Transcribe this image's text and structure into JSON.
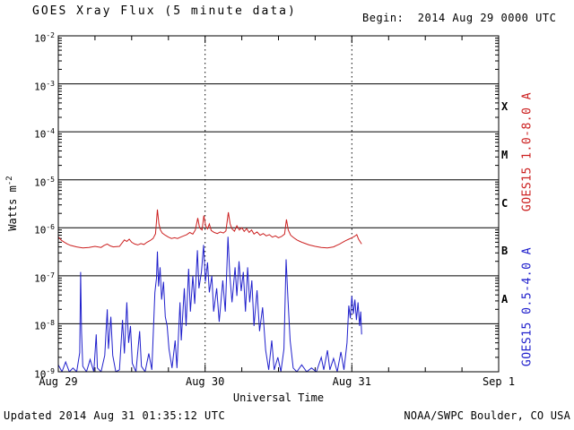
{
  "header": {
    "title": "GOES Xray Flux (5 minute data)",
    "begin_label": "Begin:  2014 Aug 29 0000 UTC"
  },
  "axes": {
    "y_label_base": "Watts m",
    "y_label_exponent": "-2",
    "x_label": "Universal Time"
  },
  "footer": {
    "updated": "Updated 2014 Aug 31 01:35:12 UTC",
    "source": "NOAA/SWPC Boulder, CO USA"
  },
  "chart_data": {
    "type": "line",
    "title": "GOES Xray Flux (5 minute data)",
    "xlabel": "Universal Time",
    "ylabel": "Watts m^-2",
    "x_unit_hours_since": "2014 Aug 29 0000 UTC",
    "x_range": [
      0,
      72
    ],
    "ylim": [
      1e-09,
      0.01
    ],
    "y_scale": "log",
    "grid": "solid horizontal lines each decade; dotted vertical lines at day boundaries",
    "legend_position": "right edge, rotated vertical",
    "y_tick_mantissa": "10",
    "y_tick_exponents": [
      -2,
      -3,
      -4,
      -5,
      -6,
      -7,
      -8,
      -9
    ],
    "x_ticks": [
      {
        "hour": 0,
        "label": "Aug 29"
      },
      {
        "hour": 24,
        "label": "Aug 30"
      },
      {
        "hour": 48,
        "label": "Aug 31"
      },
      {
        "hour": 72,
        "label": "Sep 1"
      }
    ],
    "day_gridlines_hours": [
      24,
      48
    ],
    "flare_class_bands": [
      {
        "label": "X",
        "decade_exponent": -4
      },
      {
        "label": "M",
        "decade_exponent": -5
      },
      {
        "label": "C",
        "decade_exponent": -6
      },
      {
        "label": "B",
        "decade_exponent": -7
      },
      {
        "label": "A",
        "decade_exponent": -8
      }
    ],
    "series": [
      {
        "name": "GOES15 1.0-8.0 A",
        "color": "#cc2020",
        "points": [
          [
            0,
            6.5e-07
          ],
          [
            0.5,
            5.5e-07
          ],
          [
            1.0,
            5e-07
          ],
          [
            1.5,
            4.6e-07
          ],
          [
            2.0,
            4.3e-07
          ],
          [
            3.0,
            4e-07
          ],
          [
            4.0,
            3.8e-07
          ],
          [
            5.0,
            3.9e-07
          ],
          [
            6.0,
            4.1e-07
          ],
          [
            7.0,
            3.9e-07
          ],
          [
            7.5,
            4.3e-07
          ],
          [
            8.0,
            4.6e-07
          ],
          [
            8.5,
            4.2e-07
          ],
          [
            9.0,
            4e-07
          ],
          [
            10.0,
            4.1e-07
          ],
          [
            10.8,
            5.6e-07
          ],
          [
            11.2,
            5.2e-07
          ],
          [
            11.6,
            5.8e-07
          ],
          [
            12.0,
            5e-07
          ],
          [
            12.5,
            4.6e-07
          ],
          [
            13.0,
            4.4e-07
          ],
          [
            13.5,
            4.7e-07
          ],
          [
            14.0,
            4.5e-07
          ],
          [
            14.5,
            5e-07
          ],
          [
            15.0,
            5.4e-07
          ],
          [
            15.5,
            6e-07
          ],
          [
            15.9,
            7.5e-07
          ],
          [
            16.2,
            2.4e-06
          ],
          [
            16.45,
            1.2e-06
          ],
          [
            16.7,
            9e-07
          ],
          [
            17.0,
            7.8e-07
          ],
          [
            17.5,
            7e-07
          ],
          [
            18.0,
            6.4e-07
          ],
          [
            18.5,
            6e-07
          ],
          [
            19.0,
            6.2e-07
          ],
          [
            19.5,
            6e-07
          ],
          [
            20.0,
            6.4e-07
          ],
          [
            20.5,
            6.8e-07
          ],
          [
            21.0,
            7.2e-07
          ],
          [
            21.5,
            8e-07
          ],
          [
            22.0,
            7.4e-07
          ],
          [
            22.4,
            9e-07
          ],
          [
            22.8,
            1.6e-06
          ],
          [
            23.1,
            1e-06
          ],
          [
            23.5,
            9e-07
          ],
          [
            23.8,
            1.8e-06
          ],
          [
            24.1,
            1.1e-06
          ],
          [
            24.4,
            9.5e-07
          ],
          [
            24.7,
            1.2e-06
          ],
          [
            25.0,
            8.8e-07
          ],
          [
            25.5,
            8e-07
          ],
          [
            26.0,
            7.6e-07
          ],
          [
            26.5,
            8.2e-07
          ],
          [
            27.0,
            7.8e-07
          ],
          [
            27.4,
            8.6e-07
          ],
          [
            27.8,
            2.1e-06
          ],
          [
            28.1,
            1.2e-06
          ],
          [
            28.4,
            9.5e-07
          ],
          [
            28.8,
            8.5e-07
          ],
          [
            29.2,
            1.1e-06
          ],
          [
            29.6,
            9e-07
          ],
          [
            30.0,
            1e-06
          ],
          [
            30.4,
            8.4e-07
          ],
          [
            30.8,
            9.6e-07
          ],
          [
            31.2,
            8e-07
          ],
          [
            31.6,
            9e-07
          ],
          [
            32.0,
            7.4e-07
          ],
          [
            32.5,
            8.2e-07
          ],
          [
            33.0,
            7e-07
          ],
          [
            33.5,
            7.6e-07
          ],
          [
            34.0,
            6.8e-07
          ],
          [
            34.5,
            7.2e-07
          ],
          [
            35.0,
            6.4e-07
          ],
          [
            35.5,
            6.8e-07
          ],
          [
            36.0,
            6.2e-07
          ],
          [
            36.5,
            6.6e-07
          ],
          [
            37.0,
            7.4e-07
          ],
          [
            37.3,
            1.5e-06
          ],
          [
            37.6,
            9e-07
          ],
          [
            38.0,
            7e-07
          ],
          [
            38.5,
            6.2e-07
          ],
          [
            39.0,
            5.6e-07
          ],
          [
            39.5,
            5.2e-07
          ],
          [
            40.0,
            4.9e-07
          ],
          [
            41.0,
            4.4e-07
          ],
          [
            42.0,
            4.1e-07
          ],
          [
            43.0,
            3.9e-07
          ],
          [
            44.0,
            3.8e-07
          ],
          [
            45.0,
            4e-07
          ],
          [
            45.5,
            4.3e-07
          ],
          [
            46.0,
            4.6e-07
          ],
          [
            46.5,
            5e-07
          ],
          [
            47.0,
            5.4e-07
          ],
          [
            47.5,
            5.8e-07
          ],
          [
            48.0,
            6.2e-07
          ],
          [
            48.4,
            6.6e-07
          ],
          [
            48.8,
            7.2e-07
          ],
          [
            49.1,
            5.8e-07
          ],
          [
            49.4,
            5e-07
          ],
          [
            49.6,
            4.6e-07
          ]
        ]
      },
      {
        "name": "GOES15 0.5-4.0 A",
        "color": "#2020cc",
        "points": [
          [
            0,
            1.4e-09
          ],
          [
            0.6,
            1e-09
          ],
          [
            1.2,
            1.6e-09
          ],
          [
            1.8,
            1e-09
          ],
          [
            2.4,
            1.2e-09
          ],
          [
            3.0,
            1e-09
          ],
          [
            3.5,
            2.5e-09
          ],
          [
            3.65,
            1.2e-07
          ],
          [
            3.8,
            7e-09
          ],
          [
            4.0,
            1.3e-09
          ],
          [
            4.6,
            1e-09
          ],
          [
            5.2,
            1.8e-09
          ],
          [
            5.8,
            1e-09
          ],
          [
            6.2,
            6e-09
          ],
          [
            6.4,
            1.2e-09
          ],
          [
            7.0,
            1e-09
          ],
          [
            7.6,
            2.2e-09
          ],
          [
            8.0,
            2e-08
          ],
          [
            8.2,
            3e-09
          ],
          [
            8.6,
            1.4e-08
          ],
          [
            8.9,
            2.2e-09
          ],
          [
            9.4,
            1e-09
          ],
          [
            10.0,
            1.1e-09
          ],
          [
            10.5,
            1.2e-08
          ],
          [
            10.8,
            2.4e-09
          ],
          [
            11.2,
            2.8e-08
          ],
          [
            11.5,
            4e-09
          ],
          [
            11.8,
            9e-09
          ],
          [
            12.1,
            1.5e-09
          ],
          [
            12.7,
            1e-09
          ],
          [
            13.3,
            7e-09
          ],
          [
            13.6,
            1.3e-09
          ],
          [
            14.2,
            1e-09
          ],
          [
            14.8,
            2.4e-09
          ],
          [
            15.3,
            1.1e-09
          ],
          [
            15.8,
            4.5e-08
          ],
          [
            16.05,
            9e-08
          ],
          [
            16.2,
            3.2e-07
          ],
          [
            16.4,
            6e-08
          ],
          [
            16.65,
            1.5e-07
          ],
          [
            16.9,
            3.2e-08
          ],
          [
            17.2,
            7.5e-08
          ],
          [
            17.5,
            1.4e-08
          ],
          [
            17.8,
            9e-09
          ],
          [
            18.1,
            3e-09
          ],
          [
            18.6,
            1.2e-09
          ],
          [
            19.1,
            4.5e-09
          ],
          [
            19.4,
            1.2e-09
          ],
          [
            19.9,
            2.8e-08
          ],
          [
            20.1,
            4.5e-09
          ],
          [
            20.6,
            5.5e-08
          ],
          [
            20.9,
            9e-09
          ],
          [
            21.3,
            1.4e-07
          ],
          [
            21.6,
            1.8e-08
          ],
          [
            22.0,
            1e-07
          ],
          [
            22.3,
            2.6e-08
          ],
          [
            22.75,
            3.4e-07
          ],
          [
            23.0,
            5.5e-08
          ],
          [
            23.4,
            1.2e-07
          ],
          [
            23.75,
            4.4e-07
          ],
          [
            24.05,
            7.5e-08
          ],
          [
            24.4,
            1.9e-07
          ],
          [
            24.7,
            4.5e-08
          ],
          [
            25.1,
            1e-07
          ],
          [
            25.4,
            1.8e-08
          ],
          [
            25.9,
            5.5e-08
          ],
          [
            26.3,
            1.1e-08
          ],
          [
            26.9,
            8e-08
          ],
          [
            27.3,
            1.8e-08
          ],
          [
            27.75,
            6.5e-07
          ],
          [
            28.05,
            1e-07
          ],
          [
            28.4,
            2.8e-08
          ],
          [
            28.9,
            1.5e-07
          ],
          [
            29.2,
            3.8e-08
          ],
          [
            29.55,
            2e-07
          ],
          [
            29.9,
            4.8e-08
          ],
          [
            30.25,
            1.2e-07
          ],
          [
            30.6,
            1.8e-08
          ],
          [
            30.95,
            1.5e-07
          ],
          [
            31.3,
            2.8e-08
          ],
          [
            31.65,
            8e-08
          ],
          [
            32.0,
            9e-09
          ],
          [
            32.5,
            5e-08
          ],
          [
            32.9,
            7e-09
          ],
          [
            33.4,
            2.2e-08
          ],
          [
            33.9,
            2.8e-09
          ],
          [
            34.4,
            1.1e-09
          ],
          [
            34.9,
            4.5e-09
          ],
          [
            35.3,
            1.1e-09
          ],
          [
            35.9,
            2e-09
          ],
          [
            36.4,
            1e-09
          ],
          [
            36.9,
            3e-09
          ],
          [
            37.25,
            2.2e-07
          ],
          [
            37.55,
            3.2e-08
          ],
          [
            37.9,
            4.5e-09
          ],
          [
            38.4,
            1.2e-09
          ],
          [
            39.0,
            1e-09
          ],
          [
            39.8,
            1.4e-09
          ],
          [
            40.6,
            1e-09
          ],
          [
            41.4,
            1.2e-09
          ],
          [
            42.2,
            1e-09
          ],
          [
            43.0,
            2e-09
          ],
          [
            43.4,
            1.1e-09
          ],
          [
            44.0,
            2.8e-09
          ],
          [
            44.4,
            1.1e-09
          ],
          [
            45.0,
            1.9e-09
          ],
          [
            45.6,
            1e-09
          ],
          [
            46.2,
            2.6e-09
          ],
          [
            46.7,
            1.1e-09
          ],
          [
            47.2,
            4e-09
          ],
          [
            47.5,
            2.4e-08
          ],
          [
            47.75,
            1.3e-08
          ],
          [
            48.0,
            3.8e-08
          ],
          [
            48.25,
            1.6e-08
          ],
          [
            48.5,
            3.2e-08
          ],
          [
            48.75,
            1.2e-08
          ],
          [
            49.0,
            2.8e-08
          ],
          [
            49.25,
            9e-09
          ],
          [
            49.45,
            1.8e-08
          ],
          [
            49.6,
            6e-09
          ]
        ]
      }
    ]
  }
}
